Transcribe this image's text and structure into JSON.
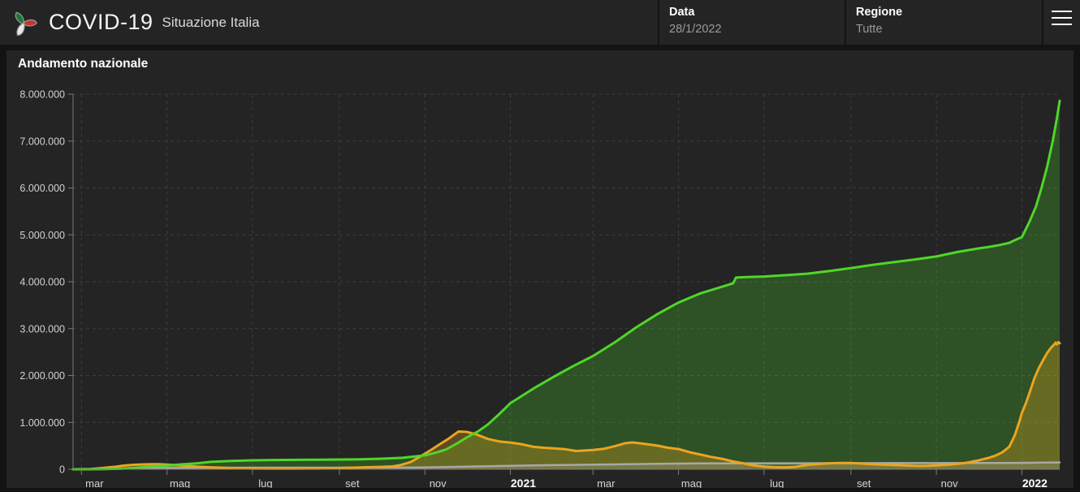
{
  "header": {
    "app_title": "COVID-19",
    "app_subtitle": "Situazione Italia",
    "logo_icon": "protezione-civile-logo",
    "menu_icon": "hamburger-menu-icon",
    "fields": [
      {
        "label": "Data",
        "value": "28/1/2022"
      },
      {
        "label": "Regione",
        "value": "Tutte"
      }
    ]
  },
  "panel": {
    "title": "Andamento nazionale"
  },
  "colors": {
    "page_bg": "#131313",
    "panel_bg": "#242424",
    "grid": "#3d3d3d",
    "axis": "#7a7a7a",
    "tick_label": "#d2d2d2",
    "year_label": "#ffffff",
    "green_line": "#4fd62a",
    "orange_line": "#eaa51f",
    "gray_line": "#a8a8a8"
  },
  "chart_data": {
    "type": "area",
    "title": "Andamento nazionale",
    "x_axis": "days since 24/2/2020",
    "x_span_days": 704,
    "ylim": [
      0,
      8000000
    ],
    "grid": "dashed",
    "legend": "none",
    "y_ticks": [
      {
        "v": 0,
        "label": "0"
      },
      {
        "v": 1000000,
        "label": "1.000.000"
      },
      {
        "v": 2000000,
        "label": "2.000.000"
      },
      {
        "v": 3000000,
        "label": "3.000.000"
      },
      {
        "v": 4000000,
        "label": "4.000.000"
      },
      {
        "v": 5000000,
        "label": "5.000.000"
      },
      {
        "v": 6000000,
        "label": "6.000.000"
      },
      {
        "v": 7000000,
        "label": "7.000.000"
      },
      {
        "v": 8000000,
        "label": "8.000.000"
      }
    ],
    "x_ticks": [
      {
        "day": 6,
        "label": "mar",
        "bold": false
      },
      {
        "day": 67,
        "label": "mag",
        "bold": false
      },
      {
        "day": 128,
        "label": "lug",
        "bold": false
      },
      {
        "day": 190,
        "label": "set",
        "bold": false
      },
      {
        "day": 251,
        "label": "nov",
        "bold": false
      },
      {
        "day": 312,
        "label": "2021",
        "bold": true
      },
      {
        "day": 371,
        "label": "mar",
        "bold": false
      },
      {
        "day": 432,
        "label": "mag",
        "bold": false
      },
      {
        "day": 493,
        "label": "lug",
        "bold": false
      },
      {
        "day": 555,
        "label": "set",
        "bold": false
      },
      {
        "day": 616,
        "label": "nov",
        "bold": false
      },
      {
        "day": 677,
        "label": "2022",
        "bold": true
      }
    ],
    "series": [
      {
        "id": "green",
        "color": "#4fd62a",
        "width": 3,
        "fill_opacity": 0.26,
        "points": [
          [
            0,
            0
          ],
          [
            12,
            1045
          ],
          [
            22,
            2941
          ],
          [
            31,
            10950
          ],
          [
            36,
            15729
          ],
          [
            46,
            34211
          ],
          [
            57,
            64928
          ],
          [
            67,
            78249
          ],
          [
            77,
            103031
          ],
          [
            88,
            125176
          ],
          [
            98,
            157507
          ],
          [
            113,
            177010
          ],
          [
            128,
            190248
          ],
          [
            143,
            196806
          ],
          [
            159,
            200229
          ],
          [
            175,
            204142
          ],
          [
            190,
            207653
          ],
          [
            205,
            212432
          ],
          [
            220,
            224417
          ],
          [
            235,
            244065
          ],
          [
            251,
            296017
          ],
          [
            259,
            357444
          ],
          [
            266,
            420810
          ],
          [
            274,
            551416
          ],
          [
            281,
            680523
          ],
          [
            289,
            809000
          ],
          [
            296,
            957657
          ],
          [
            304,
            1175901
          ],
          [
            312,
            1408686
          ],
          [
            328,
            1713030
          ],
          [
            343,
            1973388
          ],
          [
            357,
            2202077
          ],
          [
            371,
            2416093
          ],
          [
            387,
            2717704
          ],
          [
            402,
            3031007
          ],
          [
            417,
            3311267
          ],
          [
            432,
            3557133
          ],
          [
            447,
            3745555
          ],
          [
            463,
            3893259
          ],
          [
            471,
            3966540
          ],
          [
            473,
            4088998
          ],
          [
            483,
            4101795
          ],
          [
            493,
            4111147
          ],
          [
            509,
            4140667
          ],
          [
            524,
            4171605
          ],
          [
            540,
            4230907
          ],
          [
            555,
            4290086
          ],
          [
            570,
            4356192
          ],
          [
            585,
            4415723
          ],
          [
            600,
            4470678
          ],
          [
            616,
            4538214
          ],
          [
            631,
            4633239
          ],
          [
            646,
            4710000
          ],
          [
            654,
            4745000
          ],
          [
            661,
            4782000
          ],
          [
            668,
            4830000
          ],
          [
            673,
            4900000
          ],
          [
            677,
            4950000
          ],
          [
            682,
            5250000
          ],
          [
            687,
            5600000
          ],
          [
            691,
            6000000
          ],
          [
            695,
            6450000
          ],
          [
            699,
            7000000
          ],
          [
            702,
            7480000
          ],
          [
            704,
            7860000
          ]
        ]
      },
      {
        "id": "orange",
        "color": "#eaa51f",
        "width": 3,
        "fill_opacity": 0.3,
        "points": [
          [
            0,
            221
          ],
          [
            12,
            5061
          ],
          [
            22,
            28710
          ],
          [
            31,
            57521
          ],
          [
            36,
            77635
          ],
          [
            43,
            94695
          ],
          [
            50,
            104291
          ],
          [
            55,
            108257
          ],
          [
            61,
            107709
          ],
          [
            67,
            100943
          ],
          [
            77,
            81266
          ],
          [
            88,
            57752
          ],
          [
            98,
            41367
          ],
          [
            113,
            25909
          ],
          [
            128,
            15255
          ],
          [
            143,
            12456
          ],
          [
            152,
            12230
          ],
          [
            159,
            12422
          ],
          [
            175,
            16014
          ],
          [
            190,
            26754
          ],
          [
            205,
            39712
          ],
          [
            220,
            51263
          ],
          [
            228,
            60134
          ],
          [
            234,
            92445
          ],
          [
            241,
            155442
          ],
          [
            248,
            276457
          ],
          [
            255,
            405140
          ],
          [
            262,
            540000
          ],
          [
            268,
            652477
          ],
          [
            273,
            763810
          ],
          [
            275,
            805947
          ],
          [
            281,
            795845
          ],
          [
            288,
            741749
          ],
          [
            296,
            645706
          ],
          [
            304,
            593632
          ],
          [
            312,
            569896
          ],
          [
            320,
            535524
          ],
          [
            328,
            482053
          ],
          [
            336,
            459738
          ],
          [
            343,
            447589
          ],
          [
            351,
            427024
          ],
          [
            359,
            388895
          ],
          [
            364,
            398098
          ],
          [
            371,
            411966
          ],
          [
            379,
            437421
          ],
          [
            387,
            497350
          ],
          [
            394,
            556539
          ],
          [
            399,
            571618
          ],
          [
            402,
            562832
          ],
          [
            410,
            533005
          ],
          [
            417,
            504185
          ],
          [
            424,
            461212
          ],
          [
            432,
            430906
          ],
          [
            440,
            363859
          ],
          [
            447,
            319218
          ],
          [
            455,
            264647
          ],
          [
            463,
            223842
          ],
          [
            471,
            166646
          ],
          [
            478,
            127472
          ],
          [
            486,
            79704
          ],
          [
            493,
            56564
          ],
          [
            500,
            42579
          ],
          [
            507,
            40649
          ],
          [
            515,
            49310
          ],
          [
            524,
            94355
          ],
          [
            532,
            111995
          ],
          [
            540,
            128219
          ],
          [
            548,
            135787
          ],
          [
            555,
            133131
          ],
          [
            563,
            121062
          ],
          [
            570,
            108441
          ],
          [
            578,
            99743
          ],
          [
            585,
            92591
          ],
          [
            593,
            83913
          ],
          [
            600,
            74016
          ],
          [
            608,
            71454
          ],
          [
            616,
            83180
          ],
          [
            624,
            94577
          ],
          [
            631,
            114027
          ],
          [
            638,
            140641
          ],
          [
            646,
            189565
          ],
          [
            653,
            241000
          ],
          [
            658,
            290000
          ],
          [
            663,
            360000
          ],
          [
            668,
            480000
          ],
          [
            672,
            730000
          ],
          [
            675,
            1000000
          ],
          [
            677,
            1200000
          ],
          [
            680,
            1420000
          ],
          [
            683,
            1680000
          ],
          [
            686,
            1943979
          ],
          [
            689,
            2150000
          ],
          [
            692,
            2320000
          ],
          [
            695,
            2480000
          ],
          [
            698,
            2600000
          ],
          [
            700,
            2660000
          ],
          [
            701,
            2700000
          ],
          [
            702,
            2665000
          ],
          [
            703,
            2710000
          ],
          [
            704,
            2687000
          ]
        ]
      },
      {
        "id": "gray",
        "color": "#a8a8a8",
        "width": 2.5,
        "fill_opacity": 0.25,
        "points": [
          [
            0,
            10
          ],
          [
            20,
            1809
          ],
          [
            36,
            12428
          ],
          [
            50,
            21645
          ],
          [
            67,
            28236
          ],
          [
            82,
            31610
          ],
          [
            98,
            33415
          ],
          [
            128,
            34818
          ],
          [
            159,
            35141
          ],
          [
            190,
            35491
          ],
          [
            220,
            35941
          ],
          [
            240,
            37059
          ],
          [
            251,
            38826
          ],
          [
            266,
            46464
          ],
          [
            281,
            56361
          ],
          [
            296,
            65011
          ],
          [
            312,
            74621
          ],
          [
            328,
            81325
          ],
          [
            343,
            88845
          ],
          [
            357,
            93577
          ],
          [
            371,
            97945
          ],
          [
            387,
            104642
          ],
          [
            402,
            110328
          ],
          [
            417,
            115937
          ],
          [
            432,
            120807
          ],
          [
            447,
            123927
          ],
          [
            463,
            126128
          ],
          [
            493,
            127566
          ],
          [
            524,
            128063
          ],
          [
            555,
            129290
          ],
          [
            585,
            130973
          ],
          [
            616,
            132074
          ],
          [
            646,
            133931
          ],
          [
            661,
            135178
          ],
          [
            677,
            137247
          ],
          [
            691,
            141825
          ],
          [
            704,
            145537
          ]
        ]
      }
    ]
  }
}
